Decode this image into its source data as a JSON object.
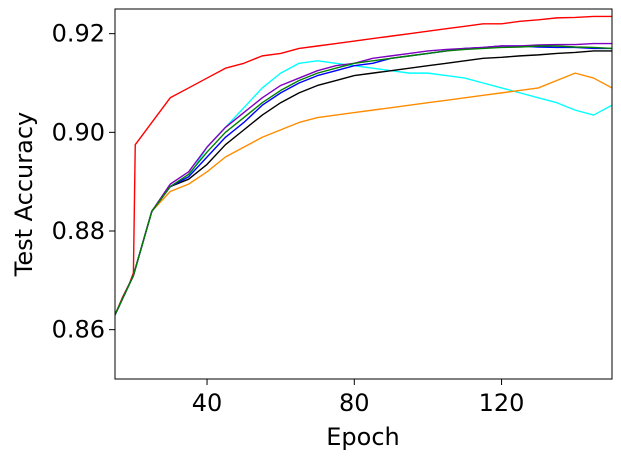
{
  "chart_data": {
    "type": "line",
    "title": "",
    "xlabel": "Epoch",
    "ylabel": "Test Accuracy",
    "xlim": [
      15,
      150
    ],
    "ylim": [
      0.85,
      0.925
    ],
    "xticks": [
      40,
      80,
      120
    ],
    "xtick_labels": [
      "40",
      "80",
      "120"
    ],
    "yticks": [
      0.86,
      0.88,
      0.9,
      0.92
    ],
    "ytick_labels": [
      "0.86",
      "0.88",
      "0.90",
      "0.92"
    ],
    "grid": false,
    "legend": "none",
    "series": [
      {
        "color": "#ff0000",
        "x": [
          15,
          17,
          19,
          20,
          20.5,
          22,
          25,
          28,
          30,
          35,
          40,
          45,
          50,
          55,
          60,
          65,
          70,
          75,
          80,
          85,
          90,
          95,
          100,
          105,
          110,
          115,
          120,
          125,
          130,
          135,
          140,
          145,
          150
        ],
        "y": [
          0.863,
          0.8665,
          0.8695,
          0.8715,
          0.8975,
          0.899,
          0.902,
          0.905,
          0.907,
          0.909,
          0.911,
          0.913,
          0.914,
          0.9155,
          0.916,
          0.917,
          0.9175,
          0.918,
          0.9185,
          0.919,
          0.9195,
          0.92,
          0.9205,
          0.921,
          0.9215,
          0.922,
          0.922,
          0.9225,
          0.9228,
          0.9232,
          0.9233,
          0.9235,
          0.9235
        ]
      },
      {
        "color": "#00ffff",
        "x": [
          15,
          20,
          25,
          30,
          35,
          40,
          45,
          50,
          55,
          60,
          65,
          70,
          75,
          80,
          85,
          90,
          95,
          100,
          105,
          110,
          115,
          120,
          125,
          130,
          135,
          140,
          145,
          150
        ],
        "y": [
          0.863,
          0.871,
          0.884,
          0.889,
          0.891,
          0.897,
          0.901,
          0.905,
          0.909,
          0.912,
          0.914,
          0.9145,
          0.914,
          0.9135,
          0.913,
          0.9125,
          0.912,
          0.912,
          0.9115,
          0.911,
          0.91,
          0.909,
          0.908,
          0.907,
          0.906,
          0.9045,
          0.9035,
          0.9055
        ]
      },
      {
        "color": "#ff8c00",
        "x": [
          15,
          20,
          25,
          30,
          35,
          40,
          45,
          50,
          55,
          60,
          65,
          70,
          75,
          80,
          85,
          90,
          95,
          100,
          105,
          110,
          115,
          120,
          125,
          130,
          135,
          140,
          145,
          150
        ],
        "y": [
          0.863,
          0.871,
          0.884,
          0.888,
          0.8895,
          0.892,
          0.895,
          0.897,
          0.899,
          0.9005,
          0.902,
          0.903,
          0.9035,
          0.904,
          0.9045,
          0.905,
          0.9055,
          0.906,
          0.9065,
          0.907,
          0.9075,
          0.908,
          0.9085,
          0.909,
          0.9105,
          0.912,
          0.911,
          0.909
        ]
      },
      {
        "color": "#000000",
        "x": [
          15,
          20,
          25,
          30,
          35,
          40,
          45,
          50,
          55,
          60,
          65,
          70,
          75,
          80,
          85,
          90,
          95,
          100,
          105,
          110,
          115,
          120,
          125,
          130,
          135,
          140,
          145,
          150
        ],
        "y": [
          0.863,
          0.871,
          0.884,
          0.889,
          0.8905,
          0.8935,
          0.8975,
          0.9005,
          0.9035,
          0.906,
          0.908,
          0.9095,
          0.9105,
          0.9115,
          0.912,
          0.9125,
          0.913,
          0.9135,
          0.914,
          0.9145,
          0.915,
          0.9152,
          0.9155,
          0.9157,
          0.916,
          0.9162,
          0.9165,
          0.9165
        ]
      },
      {
        "color": "#0000ff",
        "x": [
          15,
          20,
          25,
          30,
          35,
          40,
          45,
          50,
          55,
          60,
          65,
          70,
          75,
          80,
          85,
          90,
          95,
          100,
          105,
          110,
          115,
          120,
          125,
          130,
          135,
          140,
          145,
          150
        ],
        "y": [
          0.863,
          0.871,
          0.884,
          0.889,
          0.891,
          0.895,
          0.899,
          0.902,
          0.9055,
          0.908,
          0.91,
          0.9115,
          0.9125,
          0.9135,
          0.914,
          0.915,
          0.9155,
          0.916,
          0.9165,
          0.917,
          0.9172,
          0.9175,
          0.9175,
          0.9173,
          0.9172,
          0.9172,
          0.917,
          0.917
        ]
      },
      {
        "color": "#8000c0",
        "x": [
          15,
          20,
          25,
          30,
          35,
          40,
          45,
          50,
          55,
          60,
          65,
          70,
          75,
          80,
          85,
          90,
          95,
          100,
          105,
          110,
          115,
          120,
          125,
          130,
          135,
          140,
          145,
          150
        ],
        "y": [
          0.863,
          0.871,
          0.884,
          0.8895,
          0.892,
          0.897,
          0.901,
          0.904,
          0.907,
          0.9095,
          0.911,
          0.9125,
          0.9135,
          0.914,
          0.915,
          0.9155,
          0.916,
          0.9165,
          0.9168,
          0.917,
          0.9172,
          0.9175,
          0.9175,
          0.9177,
          0.9178,
          0.9178,
          0.918,
          0.918
        ]
      },
      {
        "color": "#008000",
        "x": [
          15,
          20,
          25,
          30,
          35,
          40,
          45,
          50,
          55,
          60,
          65,
          70,
          75,
          80,
          85,
          90,
          95,
          100,
          105,
          110,
          115,
          120,
          125,
          130,
          135,
          140,
          145,
          150
        ],
        "y": [
          0.863,
          0.871,
          0.884,
          0.889,
          0.8915,
          0.896,
          0.9,
          0.903,
          0.906,
          0.9085,
          0.9105,
          0.912,
          0.913,
          0.914,
          0.9145,
          0.915,
          0.9155,
          0.916,
          0.9165,
          0.9168,
          0.917,
          0.9172,
          0.9173,
          0.9175,
          0.9175,
          0.9173,
          0.9172,
          0.917
        ]
      }
    ]
  }
}
